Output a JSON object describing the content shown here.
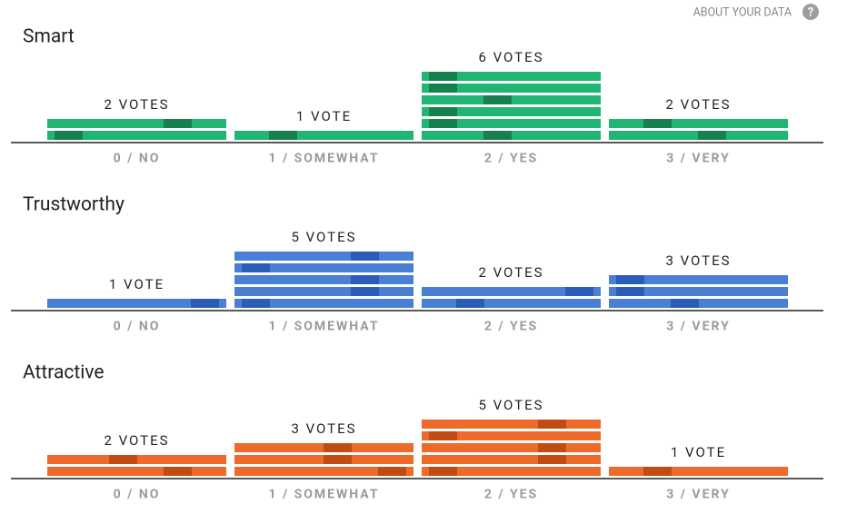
{
  "header": {
    "link": "ABOUT YOUR DATA",
    "help_icon": "?"
  },
  "chart_data": [
    {
      "type": "bar",
      "title": "Smart",
      "categories": [
        "0 / NO",
        "1 / SOMEWHAT",
        "2 / YES",
        "3 / VERY"
      ],
      "values": [
        2,
        1,
        6,
        2
      ],
      "value_labels": [
        "2 VOTES",
        "1 VOTE",
        "6 VOTES",
        "2 VOTES"
      ],
      "color": "#21b573",
      "accent_color": "#17804f"
    },
    {
      "type": "bar",
      "title": "Trustworthy",
      "categories": [
        "0 / NO",
        "1 / SOMEWHAT",
        "2 / YES",
        "3 / VERY"
      ],
      "values": [
        1,
        5,
        2,
        3
      ],
      "value_labels": [
        "1 VOTE",
        "5 VOTES",
        "2 VOTES",
        "3 VOTES"
      ],
      "color": "#4a7fd6",
      "accent_color": "#2a5cb8"
    },
    {
      "type": "bar",
      "title": "Attractive",
      "categories": [
        "0 / NO",
        "1 / SOMEWHAT",
        "2 / YES",
        "3 / VERY"
      ],
      "values": [
        2,
        3,
        5,
        1
      ],
      "value_labels": [
        "2 VOTES",
        "3 VOTES",
        "5 VOTES",
        "1 VOTE"
      ],
      "color": "#ee6a2a",
      "accent_color": "#c04c14"
    }
  ]
}
